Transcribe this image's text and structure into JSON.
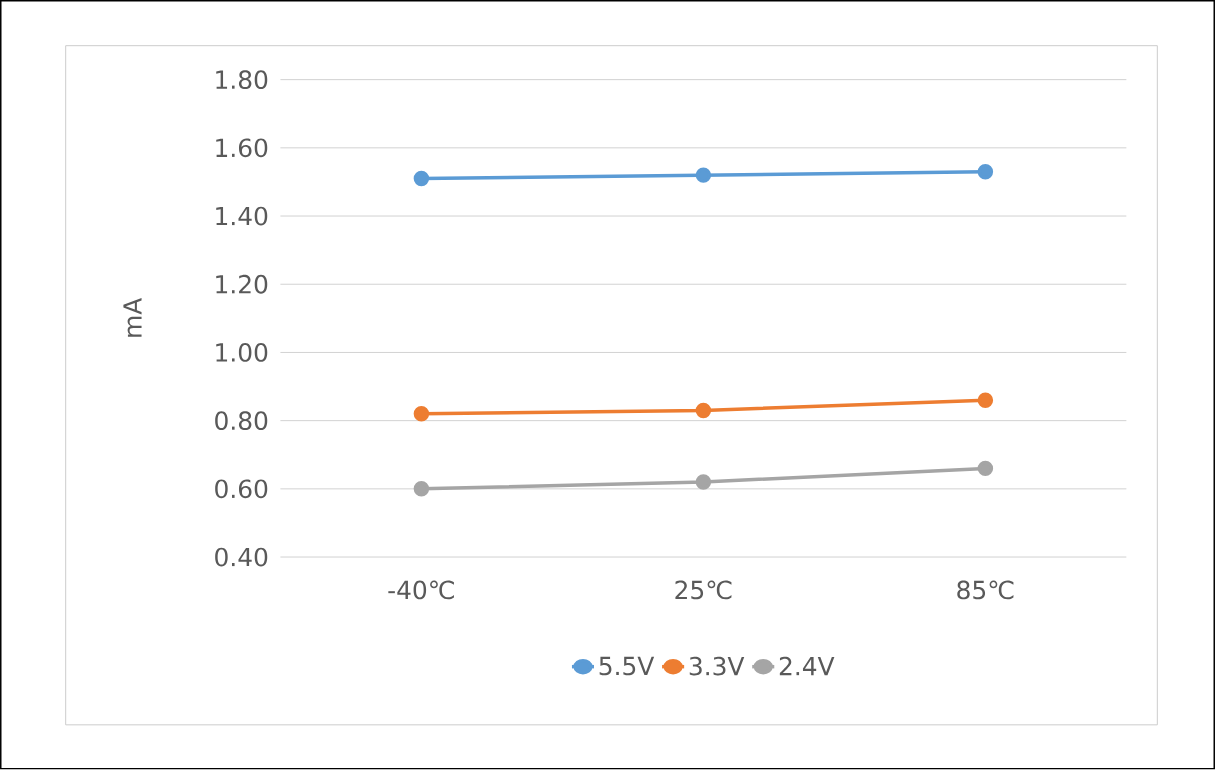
{
  "chart_data": {
    "type": "line",
    "ylabel": "mA",
    "categories": [
      "-40℃",
      "25℃",
      "85℃"
    ],
    "series": [
      {
        "name": "5.5V",
        "color": "#5b9bd5",
        "values": [
          1.51,
          1.52,
          1.53
        ]
      },
      {
        "name": "3.3V",
        "color": "#ed7d31",
        "values": [
          0.82,
          0.83,
          0.86
        ]
      },
      {
        "name": "2.4V",
        "color": "#a5a5a5",
        "values": [
          0.6,
          0.62,
          0.66
        ]
      }
    ],
    "ylim": [
      0.4,
      1.8
    ],
    "yticks": [
      {
        "value": 0.4,
        "label": "0.40"
      },
      {
        "value": 0.6,
        "label": "0.60"
      },
      {
        "value": 0.8,
        "label": "0.80"
      },
      {
        "value": 1.0,
        "label": "1.00"
      },
      {
        "value": 1.2,
        "label": "1.20"
      },
      {
        "value": 1.4,
        "label": "1.40"
      },
      {
        "value": 1.6,
        "label": "1.60"
      },
      {
        "value": 1.8,
        "label": "1.80"
      }
    ],
    "grid": "y",
    "legend": "bottom",
    "marker": "circle",
    "line_style": "solid"
  }
}
